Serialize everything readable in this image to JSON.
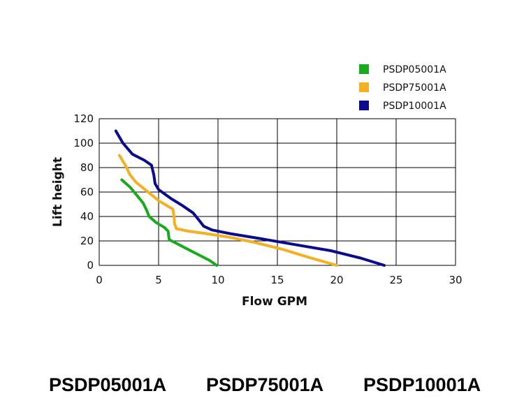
{
  "chart_data": {
    "type": "line",
    "xlabel": "Flow GPM",
    "ylabel": "Lift height",
    "xlim": [
      0,
      30
    ],
    "ylim": [
      0,
      120
    ],
    "xticks": [
      0,
      5,
      10,
      15,
      20,
      25,
      30
    ],
    "yticks": [
      0,
      20,
      40,
      60,
      80,
      100,
      120
    ],
    "grid": true,
    "legend": "top-right",
    "series": [
      {
        "name": "PSDP05001A",
        "color": "#1aaa1e",
        "points": [
          [
            1.9,
            70
          ],
          [
            2.6,
            64
          ],
          [
            3.2,
            57
          ],
          [
            3.7,
            51
          ],
          [
            4.0,
            45
          ],
          [
            4.2,
            40
          ],
          [
            4.8,
            35
          ],
          [
            5.5,
            31
          ],
          [
            5.8,
            28
          ],
          [
            5.85,
            24
          ],
          [
            5.9,
            21
          ],
          [
            6.5,
            18
          ],
          [
            7.5,
            13
          ],
          [
            8.5,
            8
          ],
          [
            9.3,
            4
          ],
          [
            9.9,
            0
          ]
        ]
      },
      {
        "name": "PSDP75001A",
        "color": "#f5b021",
        "points": [
          [
            1.7,
            90
          ],
          [
            2.2,
            82
          ],
          [
            2.6,
            74
          ],
          [
            3.1,
            68
          ],
          [
            4.0,
            61
          ],
          [
            5.0,
            53
          ],
          [
            6.2,
            46
          ],
          [
            6.3,
            40
          ],
          [
            6.35,
            34
          ],
          [
            6.5,
            30
          ],
          [
            7.5,
            28
          ],
          [
            9.0,
            26
          ],
          [
            11.0,
            23
          ],
          [
            13.0,
            19
          ],
          [
            15.5,
            13
          ],
          [
            17.5,
            7
          ],
          [
            20.0,
            0
          ]
        ]
      },
      {
        "name": "PSDP10001A",
        "color": "#0b0b8e",
        "points": [
          [
            1.4,
            110
          ],
          [
            2.0,
            100
          ],
          [
            2.8,
            91
          ],
          [
            3.8,
            86
          ],
          [
            4.4,
            82
          ],
          [
            4.6,
            74
          ],
          [
            4.7,
            67
          ],
          [
            5.0,
            62
          ],
          [
            6.0,
            55
          ],
          [
            7.0,
            49
          ],
          [
            7.9,
            43
          ],
          [
            8.4,
            37
          ],
          [
            8.8,
            32
          ],
          [
            9.5,
            29
          ],
          [
            11.0,
            26
          ],
          [
            13.5,
            22
          ],
          [
            16.5,
            17
          ],
          [
            19.5,
            12
          ],
          [
            22.0,
            6
          ],
          [
            24.0,
            0
          ]
        ]
      }
    ]
  },
  "models": [
    "PSDP05001A",
    "PSDP75001A",
    "PSDP10001A"
  ]
}
